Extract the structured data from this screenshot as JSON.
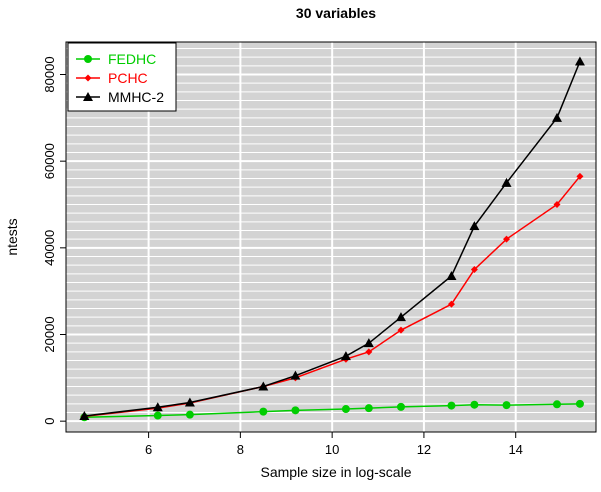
{
  "chart_data": {
    "type": "line",
    "title": "30 variables",
    "xlabel": "Sample size in log-scale",
    "ylabel": "ntests",
    "xlim": [
      4.2,
      15.75
    ],
    "ylim": [
      -2500,
      87500
    ],
    "x_ticks": [
      6,
      8,
      10,
      12,
      14
    ],
    "y_ticks": [
      0,
      20000,
      40000,
      60000,
      80000
    ],
    "grid": "white horizontal and vertical lines on grey background",
    "legend_position": "top-left",
    "background_color": "#d3d3d3",
    "grid_color": "#ffffff",
    "series": [
      {
        "name": "FEDHC",
        "color": "#00cd00",
        "marker": "circle",
        "x": [
          4.6,
          6.2,
          6.9,
          8.5,
          9.2,
          10.3,
          10.8,
          11.5,
          12.6,
          13.1,
          13.8,
          14.9,
          15.4
        ],
        "values": [
          900,
          1300,
          1500,
          2200,
          2500,
          2800,
          3000,
          3300,
          3600,
          3800,
          3700,
          3900,
          4000
        ]
      },
      {
        "name": "PCHC",
        "color": "#ff0000",
        "marker": "diamond",
        "x": [
          4.6,
          6.2,
          6.9,
          8.5,
          9.2,
          10.3,
          10.8,
          11.5,
          12.6,
          13.1,
          13.8,
          14.9,
          15.4
        ],
        "values": [
          1100,
          3000,
          4200,
          8000,
          10000,
          14300,
          16000,
          21000,
          27000,
          35000,
          42000,
          50000,
          56500
        ]
      },
      {
        "name": "MMHC-2",
        "color": "#000000",
        "marker": "triangle",
        "x": [
          4.6,
          6.2,
          6.9,
          8.5,
          9.2,
          10.3,
          10.8,
          11.5,
          12.6,
          13.1,
          13.8,
          14.9,
          15.4
        ],
        "values": [
          1200,
          3200,
          4300,
          8000,
          10500,
          15000,
          18000,
          24000,
          33500,
          45000,
          55000,
          70000,
          83000
        ]
      }
    ]
  }
}
